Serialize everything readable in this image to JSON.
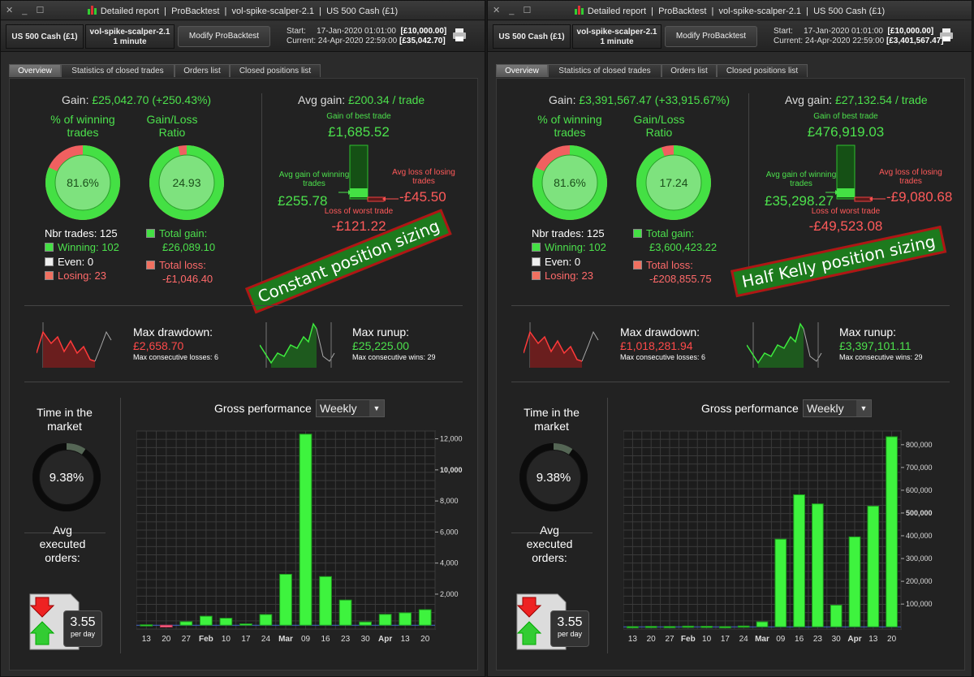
{
  "colors": {
    "green": "#4ce04c",
    "red": "#ff4a4a",
    "bar": "#3ef33e",
    "panel": "#222222"
  },
  "windows": [
    {
      "title_parts": [
        "Detailed report",
        "ProBacktest",
        "vol-spike-scalper-2.1",
        "US 500 Cash (£1)"
      ],
      "instrument": "US 500 Cash (£1)",
      "strategy_name": "vol-spike-scalper-2.1",
      "timeframe": "1 minute",
      "modify_label": "Modify ProBacktest",
      "start_label": "Start:",
      "start_value": "17-Jan-2020 01:01:00",
      "start_capital": "[£10,000.00]",
      "current_label": "Current:",
      "current_value": "24-Apr-2020 22:59:00",
      "current_capital": "[£35,042.70]",
      "tabs": [
        "Overview",
        "Statistics of closed trades",
        "Orders list",
        "Closed positions list"
      ],
      "gain_label": "Gain:",
      "gain_value": "£25,042.70 (+250.43%)",
      "winning_pct_label": "% of winning trades",
      "winning_pct_value": "81.6%",
      "winning_fraction": 0.816,
      "gl_ratio_label": "Gain/Loss Ratio",
      "gl_ratio_value": "24.93",
      "gl_fraction": 0.961,
      "nbr_trades": "Nbr trades: 125",
      "winning": "Winning: 102",
      "even": "Even: 0",
      "losing": "Losing: 23",
      "total_gain_label": "Total gain:",
      "total_gain_value": "£26,089.10",
      "total_loss_label": "Total loss:",
      "total_loss_value": "-£1,046.40",
      "avg_gain_label": "Avg gain:",
      "avg_gain_value": "£200.34 / trade",
      "best_label": "Gain of best trade",
      "best_value": "£1,685.52",
      "avg_win_label": "Avg gain of winning trades",
      "avg_win_value": "£255.78",
      "avg_loss_label": "Avg loss of losing trades",
      "avg_loss_value": "-£45.50",
      "worst_label": "Loss of worst trade",
      "worst_value": "-£121.22",
      "annotation": "Constant position sizing",
      "drawdown_label": "Max drawdown:",
      "drawdown_value": "£2,658.70",
      "max_losses": "Max consecutive losses: 6",
      "runup_label": "Max runup:",
      "runup_value": "£25,225.00",
      "max_wins": "Max consecutive wins: 29",
      "time_label": "Time in the market",
      "time_value": "9.38%",
      "time_fraction": 0.0938,
      "avg_orders_label": "Avg executed orders:",
      "avg_orders_value": "3.55",
      "per_day": "per day",
      "gross_label": "Gross performance",
      "period": "Weekly",
      "chart_data": {
        "type": "bar",
        "categories": [
          "13",
          "20",
          "27",
          "Feb",
          "10",
          "17",
          "24",
          "Mar",
          "09",
          "16",
          "23",
          "30",
          "Apr",
          "13",
          "20"
        ],
        "values": [
          30,
          -120,
          230,
          580,
          450,
          90,
          690,
          3280,
          12300,
          3130,
          1620,
          210,
          700,
          800,
          1000
        ],
        "y_ticks": [
          2000,
          4000,
          6000,
          8000,
          10000,
          12000
        ],
        "y_tick_labels": [
          "2,000",
          "4,000",
          "6,000",
          "8,000",
          "10,000",
          "12,000"
        ],
        "bold_tick": "10,000",
        "ylim": [
          -250,
          12500
        ]
      }
    },
    {
      "title_parts": [
        "Detailed report",
        "ProBacktest",
        "vol-spike-scalper-2.1",
        "US 500 Cash (£1)"
      ],
      "instrument": "US 500 Cash (£1)",
      "strategy_name": "vol-spike-scalper-2.1",
      "timeframe": "1 minute",
      "modify_label": "Modify ProBacktest",
      "start_label": "Start:",
      "start_value": "17-Jan-2020 01:01:00",
      "start_capital": "[£10,000.00]",
      "current_label": "Current:",
      "current_value": "24-Apr-2020 22:59:00",
      "current_capital": "[£3,401,567.47]",
      "tabs": [
        "Overview",
        "Statistics of closed trades",
        "Orders list",
        "Closed positions list"
      ],
      "gain_label": "Gain:",
      "gain_value": "£3,391,567.47 (+33,915.67%)",
      "winning_pct_label": "% of winning trades",
      "winning_pct_value": "81.6%",
      "winning_fraction": 0.816,
      "gl_ratio_label": "Gain/Loss Ratio",
      "gl_ratio_value": "17.24",
      "gl_fraction": 0.945,
      "nbr_trades": "Nbr trades: 125",
      "winning": "Winning: 102",
      "even": "Even: 0",
      "losing": "Losing: 23",
      "total_gain_label": "Total gain:",
      "total_gain_value": "£3,600,423.22",
      "total_loss_label": "Total loss:",
      "total_loss_value": "-£208,855.75",
      "avg_gain_label": "Avg gain:",
      "avg_gain_value": "£27,132.54 / trade",
      "best_label": "Gain of best trade",
      "best_value": "£476,919.03",
      "avg_win_label": "Avg gain of winning trades",
      "avg_win_value": "£35,298.27",
      "avg_loss_label": "Avg loss of losing trades",
      "avg_loss_value": "-£9,080.68",
      "worst_label": "Loss of worst trade",
      "worst_value": "-£49,523.08",
      "annotation": "Half Kelly position sizing",
      "drawdown_label": "Max drawdown:",
      "drawdown_value": "£1,018,281.94",
      "max_losses": "Max consecutive losses: 6",
      "runup_label": "Max runup:",
      "runup_value": "£3,397,101.11",
      "max_wins": "Max consecutive wins: 29",
      "time_label": "Time in the market",
      "time_value": "9.38%",
      "time_fraction": 0.0938,
      "avg_orders_label": "Avg executed orders:",
      "avg_orders_value": "3.55",
      "per_day": "per day",
      "gross_label": "Gross performance",
      "period": "Weekly",
      "chart_data": {
        "type": "bar",
        "categories": [
          "13",
          "20",
          "27",
          "Feb",
          "10",
          "17",
          "24",
          "Mar",
          "09",
          "16",
          "23",
          "30",
          "Apr",
          "13",
          "20"
        ],
        "values": [
          1000,
          2000,
          1500,
          3000,
          2500,
          1000,
          3500,
          22000,
          385000,
          580000,
          540000,
          95000,
          395000,
          530000,
          835000
        ],
        "y_ticks": [
          100000,
          200000,
          300000,
          400000,
          500000,
          600000,
          700000,
          800000
        ],
        "y_tick_labels": [
          "100,000",
          "200,000",
          "300,000",
          "400,000",
          "500,000",
          "600,000",
          "700,000",
          "800,000"
        ],
        "bold_tick": "500,000",
        "ylim": [
          -10000,
          860000
        ]
      }
    }
  ]
}
